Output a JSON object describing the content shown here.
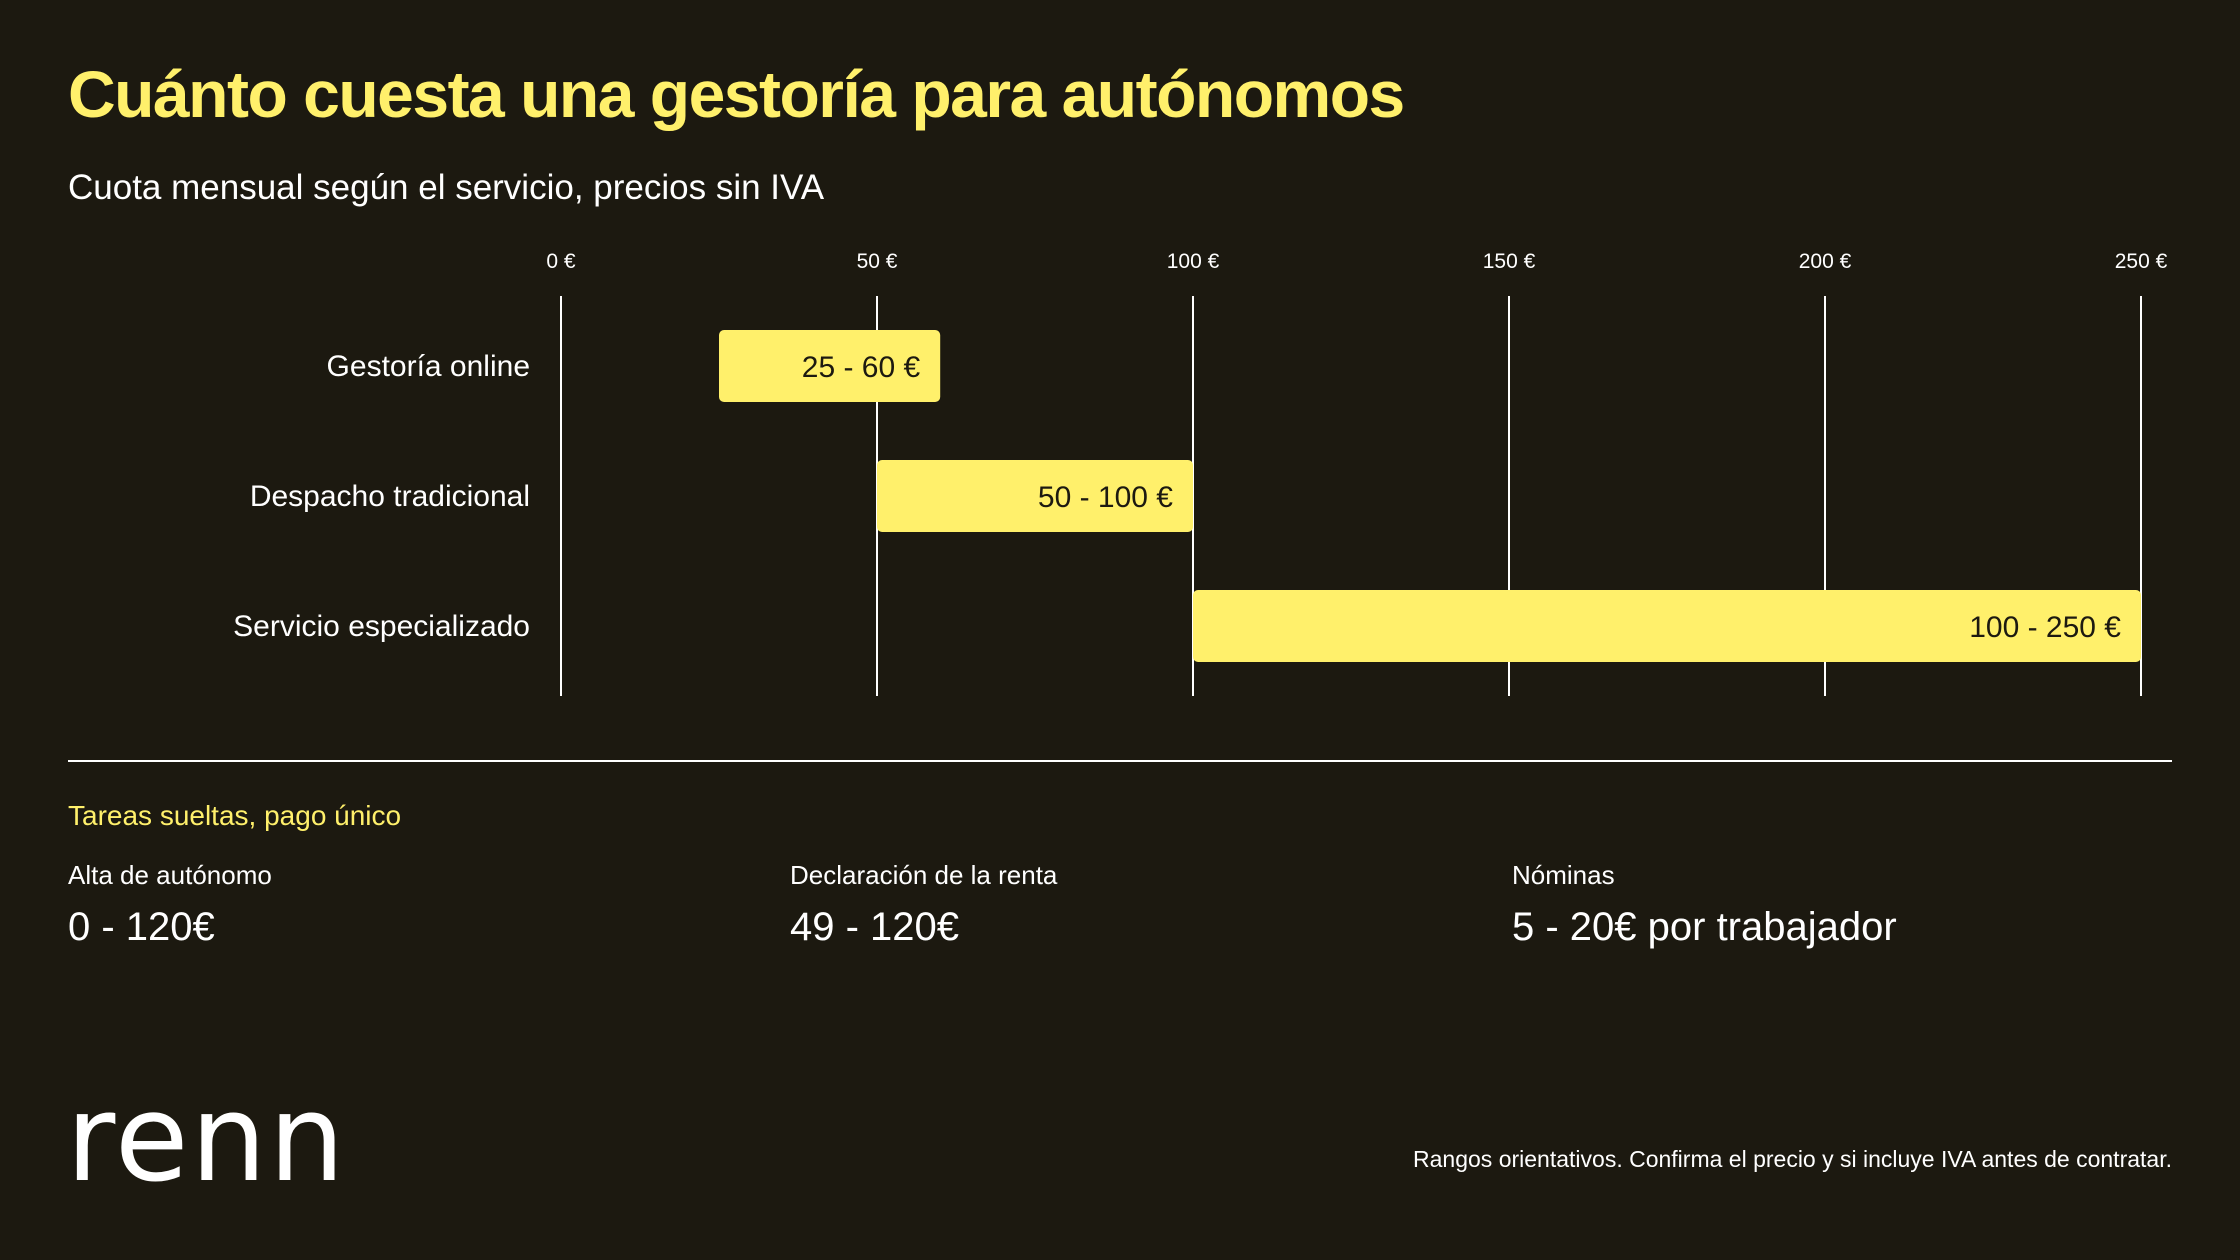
{
  "title": "Cuánto cuesta una gestoría para autónomos",
  "subtitle": "Cuota mensual según el servicio, precios sin IVA",
  "colors": {
    "background": "#1c1910",
    "accent": "#fff06b",
    "text": "#ffffff",
    "bar_text": "#1c1910"
  },
  "chart_data": {
    "type": "bar",
    "orientation": "horizontal-range",
    "categories": [
      "Gestoría online",
      "Despacho tradicional",
      "Servicio especializado"
    ],
    "series": [
      {
        "ranges": [
          [
            25,
            60
          ],
          [
            50,
            100
          ],
          [
            100,
            250
          ]
        ],
        "labels": [
          "25 - 60 €",
          "50 - 100 €",
          "100 - 250 €"
        ]
      }
    ],
    "xlim": [
      0,
      250
    ],
    "ticks": [
      0,
      50,
      100,
      150,
      200,
      250
    ],
    "tick_labels": [
      "0 €",
      "50 €",
      "100 €",
      "150 €",
      "200 €",
      "250 €"
    ],
    "grid": true,
    "xlabel": "",
    "ylabel": ""
  },
  "tasks": {
    "heading": "Tareas sueltas, pago único",
    "items": [
      {
        "label": "Alta de autónomo",
        "value": "0 - 120€"
      },
      {
        "label": "Declaración de la renta",
        "value": "49 - 120€"
      },
      {
        "label": "Nóminas",
        "value": "5 - 20€ por trabajador"
      }
    ]
  },
  "logo_text": "renn",
  "footnote": "Rangos orientativos. Confirma el precio y si incluye IVA antes de contratar."
}
